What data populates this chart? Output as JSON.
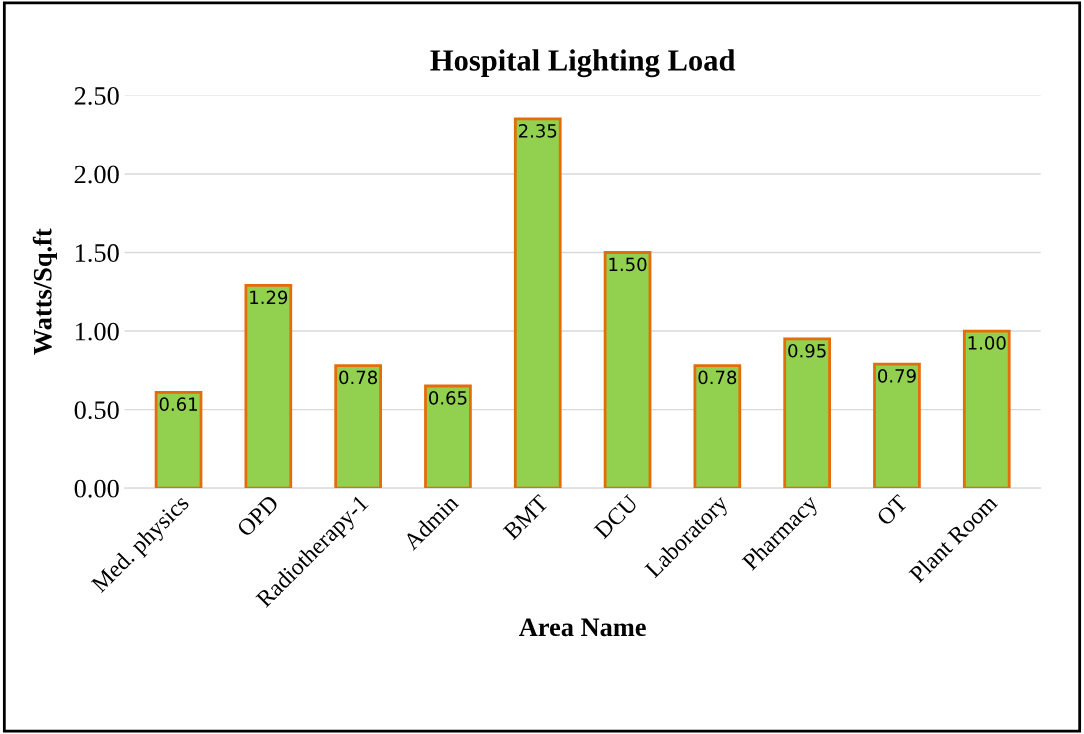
{
  "chart_data": {
    "type": "bar",
    "title": "Hospital Lighting Load",
    "xlabel": "Area Name",
    "ylabel": "Watts/Sq.ft",
    "categories": [
      "Med. physics",
      "OPD",
      "Radiotherapy-1",
      "Admin",
      "BMT",
      "DCU",
      "Laboratory",
      "Pharmacy",
      "OT",
      "Plant Room"
    ],
    "values": [
      0.61,
      1.29,
      0.78,
      0.65,
      2.35,
      1.5,
      0.78,
      0.95,
      0.79,
      1.0
    ],
    "value_labels": [
      "0.61",
      "1.29",
      "0.78",
      "0.65",
      "2.35",
      "1.50",
      "0.78",
      "0.95",
      "0.79",
      "1.00"
    ],
    "color": "#92d050",
    "ylim": [
      0,
      2.5
    ],
    "yticks": [
      {
        "value": 0,
        "label": "0.00"
      },
      {
        "value": 0.5,
        "label": "0.50"
      },
      {
        "value": 1,
        "label": "1.00"
      },
      {
        "value": 1.5,
        "label": "1.50"
      },
      {
        "value": 2,
        "label": "2.00"
      },
      {
        "value": 2.5,
        "label": "2.50"
      }
    ],
    "grid": "y",
    "legend": false
  }
}
